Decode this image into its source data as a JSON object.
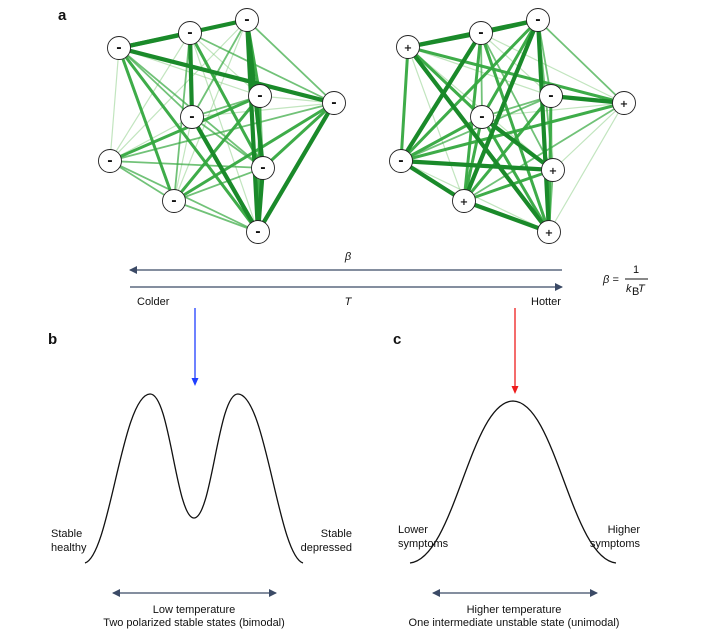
{
  "panels": {
    "a": "a",
    "b": "b",
    "c": "c"
  },
  "colors": {
    "edge_dark": "#1a8a2a",
    "edge_mid": "#34a83f",
    "edge_light": "#8fd08a",
    "axis_arrow": "#3b4a66",
    "colder": "#1f3fff",
    "hotter": "#ee1c1c",
    "node_fill": "#ffffff",
    "curve": "#111111"
  },
  "networks": {
    "left": {
      "signs": [
        "-",
        "-",
        "-",
        "-",
        "-",
        "-",
        "-",
        "-",
        "-",
        "-"
      ]
    },
    "right": {
      "signs": [
        "+",
        "-",
        "-",
        "-",
        "-",
        "-",
        "+",
        "-",
        "+",
        "+",
        "+"
      ]
    }
  },
  "axis": {
    "beta_label": "β",
    "t_label": "T",
    "colder_label": "Colder",
    "hotter_label": "Hotter",
    "formula_lhs": "β =",
    "formula_num": "1",
    "formula_den_k": "k",
    "formula_den_sub": "B",
    "formula_den_T": "T"
  },
  "panel_b": {
    "left_label_line1": "Stable",
    "left_label_line2": "healthy",
    "right_label_line1": "Stable",
    "right_label_line2": "depressed",
    "range_label": "Low temperature",
    "caption": "Two polarized stable states (bimodal)"
  },
  "panel_c": {
    "left_label_line1": "Lower",
    "left_label_line2": "symptoms",
    "right_label_line1": "Higher",
    "right_label_line2": "symptoms",
    "range_label": "Higher temperature",
    "caption": "One intermediate unstable state (unimodal)"
  }
}
